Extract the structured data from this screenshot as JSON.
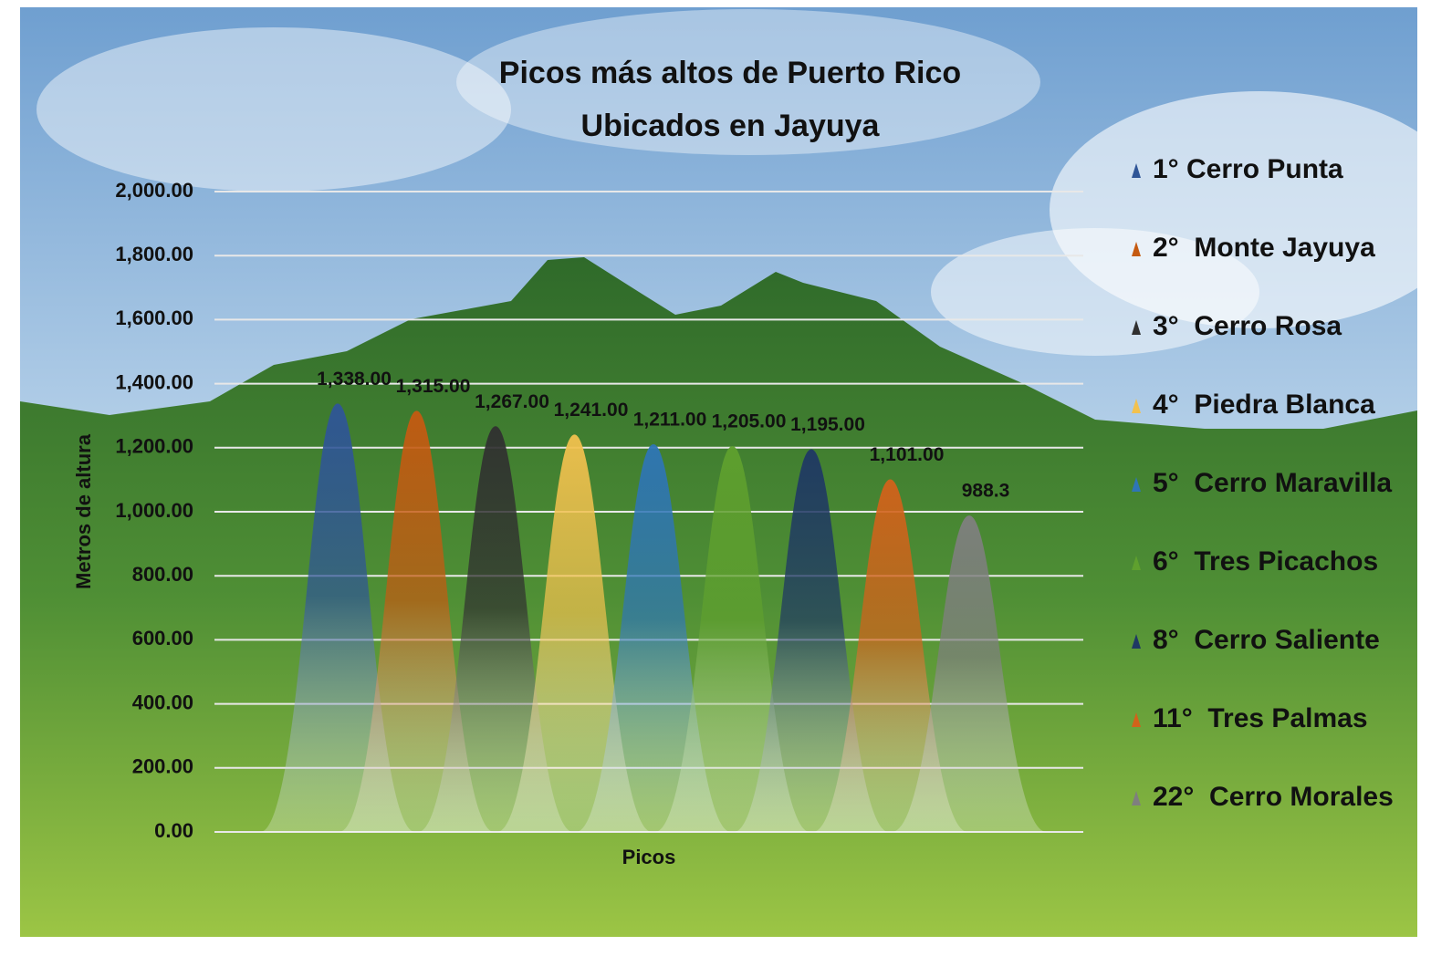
{
  "chart_data": {
    "type": "bar",
    "title": "Picos más altos de Puerto Rico",
    "subtitle": "Ubicados en Jayuya",
    "y_label": "Metros de altura",
    "x_label": "Picos",
    "ylim": [
      0,
      2000
    ],
    "yticks": [
      {
        "value": 0,
        "label": "0.00"
      },
      {
        "value": 200,
        "label": "200.00"
      },
      {
        "value": 400,
        "label": "400.00"
      },
      {
        "value": 600,
        "label": "600.00"
      },
      {
        "value": 800,
        "label": "800.00"
      },
      {
        "value": 1000,
        "label": "1,000.00"
      },
      {
        "value": 1200,
        "label": "1,200.00"
      },
      {
        "value": 1400,
        "label": "1,400.00"
      },
      {
        "value": 1600,
        "label": "1,600.00"
      },
      {
        "value": 1800,
        "label": "1,800.00"
      },
      {
        "value": 2000,
        "label": "2,000.00"
      }
    ],
    "grid": true,
    "legend": "right",
    "series": [
      {
        "name": "1° Cerro Punta",
        "color": "#2f5597",
        "values": [
          1338
        ],
        "value_labels": [
          "1,338.00"
        ]
      },
      {
        "name": "2°  Monte Jayuya",
        "color": "#c55a11",
        "values": [
          1315
        ],
        "value_labels": [
          "1,315.00"
        ]
      },
      {
        "name": "3°  Cerro Rosa",
        "color": "#303030",
        "values": [
          1267
        ],
        "value_labels": [
          "1,267.00"
        ]
      },
      {
        "name": "4°  Piedra Blanca",
        "color": "#f2c14e",
        "values": [
          1241
        ],
        "value_labels": [
          "1,241.00"
        ]
      },
      {
        "name": "5°  Cerro Maravilla",
        "color": "#2e75b6",
        "values": [
          1211
        ],
        "value_labels": [
          "1,211.00"
        ]
      },
      {
        "name": "6°  Tres Picachos",
        "color": "#5fa02e",
        "values": [
          1205
        ],
        "value_labels": [
          "1,205.00"
        ]
      },
      {
        "name": "8°  Cerro Saliente",
        "color": "#1f3864",
        "values": [
          1195
        ],
        "value_labels": [
          "1,195.00"
        ]
      },
      {
        "name": "11°  Tres Palmas",
        "color": "#d2621a",
        "values": [
          1101
        ],
        "value_labels": [
          "1,101.00"
        ]
      },
      {
        "name": "22°  Cerro Morales",
        "color": "#7f7f7f",
        "values": [
          988.3
        ],
        "value_labels": [
          "988.3"
        ]
      }
    ]
  }
}
